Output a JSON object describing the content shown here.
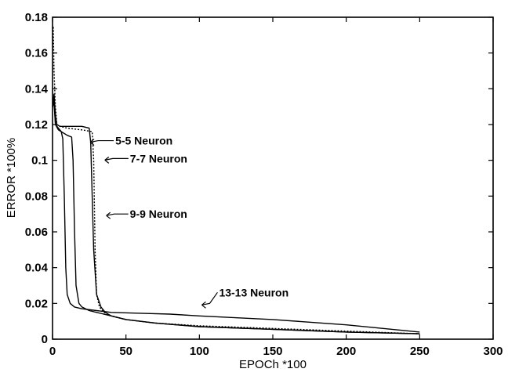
{
  "chart_data": {
    "type": "line",
    "title": "",
    "xlabel": "EPOCh *100",
    "ylabel": "ERROR *100%",
    "xlim": [
      0,
      300
    ],
    "ylim": [
      0,
      0.18
    ],
    "xticks": [
      0,
      50,
      100,
      150,
      200,
      250,
      300
    ],
    "yticks": [
      0,
      0.02,
      0.04,
      0.06,
      0.08,
      0.1,
      0.12,
      0.14,
      0.16,
      0.18
    ],
    "xtick_labels": [
      "0",
      "50",
      "100",
      "150",
      "200",
      "250",
      "300"
    ],
    "ytick_labels": [
      "0",
      "0.02",
      "0.04",
      "0.06",
      "0.08",
      "0.1",
      "0.12",
      "0.14",
      "0.16",
      "0.18"
    ],
    "grid": false,
    "series": [
      {
        "name": "5-5 Neuron",
        "style": "dotted",
        "x": [
          0,
          0.5,
          1,
          2,
          3,
          5,
          10,
          20,
          27,
          28,
          29,
          30,
          32,
          35,
          40,
          50,
          70,
          100,
          150,
          200,
          250
        ],
        "y": [
          0.165,
          0.175,
          0.15,
          0.13,
          0.12,
          0.119,
          0.118,
          0.117,
          0.116,
          0.1,
          0.05,
          0.025,
          0.018,
          0.015,
          0.013,
          0.011,
          0.009,
          0.0075,
          0.006,
          0.0045,
          0.003
        ]
      },
      {
        "name": "7-7 Neuron",
        "style": "solid",
        "x": [
          0,
          1,
          2,
          3,
          5,
          10,
          15,
          20,
          25,
          26,
          27,
          28,
          30,
          33,
          36,
          40,
          50,
          70,
          100,
          150,
          200,
          250
        ],
        "y": [
          0.13,
          0.137,
          0.125,
          0.12,
          0.119,
          0.119,
          0.119,
          0.119,
          0.118,
          0.11,
          0.08,
          0.05,
          0.025,
          0.018,
          0.015,
          0.013,
          0.011,
          0.009,
          0.007,
          0.0055,
          0.004,
          0.003
        ]
      },
      {
        "name": "9-9 Neuron",
        "style": "solid",
        "x": [
          0,
          1,
          2,
          4,
          6,
          10,
          13,
          14,
          15,
          16,
          18,
          20,
          25,
          30,
          40,
          50,
          70,
          100,
          150,
          200,
          250
        ],
        "y": [
          0.13,
          0.135,
          0.12,
          0.118,
          0.116,
          0.114,
          0.113,
          0.1,
          0.06,
          0.03,
          0.02,
          0.018,
          0.016,
          0.015,
          0.013,
          0.011,
          0.009,
          0.007,
          0.0055,
          0.004,
          0.003
        ]
      },
      {
        "name": "13-13 Neuron",
        "style": "solid",
        "x": [
          0,
          1,
          2,
          4,
          6,
          7,
          8,
          9,
          10,
          12,
          15,
          20,
          30,
          40,
          60,
          80,
          100,
          150,
          200,
          250
        ],
        "y": [
          0.13,
          0.132,
          0.12,
          0.117,
          0.116,
          0.112,
          0.08,
          0.04,
          0.025,
          0.02,
          0.018,
          0.017,
          0.016,
          0.015,
          0.0145,
          0.014,
          0.013,
          0.011,
          0.008,
          0.004
        ]
      }
    ],
    "annotations": [
      {
        "text": "5-5 Neuron",
        "series": "5-5 Neuron",
        "x": 31,
        "y": 0.111
      },
      {
        "text": "7-7 Neuron",
        "series": "7-7 Neuron",
        "x": 41,
        "y": 0.101
      },
      {
        "text": "9-9 Neuron",
        "series": "9-9 Neuron",
        "x": 42,
        "y": 0.07
      },
      {
        "text": "13-13 Neuron",
        "series": "13-13 Neuron",
        "x": 107,
        "y": 0.02
      }
    ]
  }
}
